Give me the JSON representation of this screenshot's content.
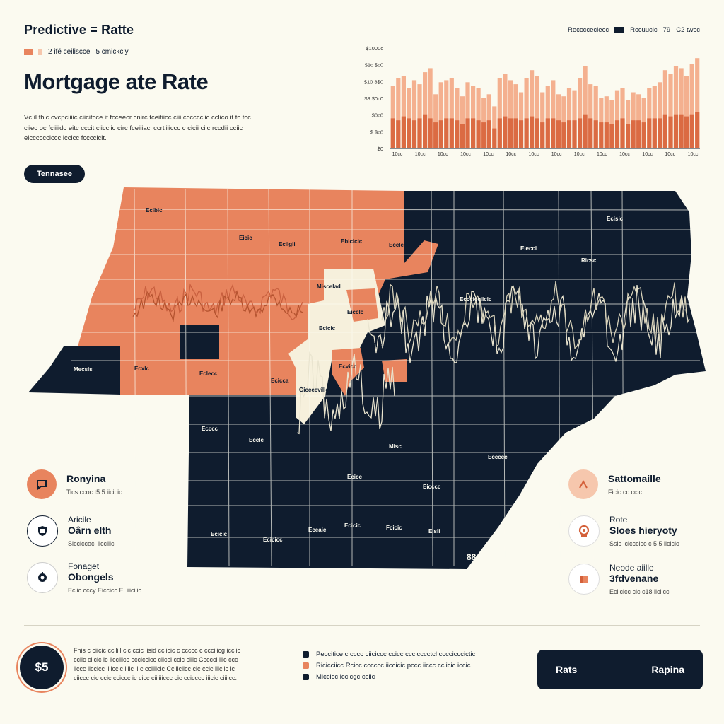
{
  "header": {
    "kicker": "Predictive = Ratte",
    "legend_a": "2 ifé ceiliscce",
    "legend_b": "5 cmickcly",
    "title": "Mortgage ate Rate",
    "description": "Vc il fhic cvcpciiiic ciicitcce it fcceecr cnirc tceitiicc ciii cccccciic cclico it tc tcc ciiec oc fciiiidc eitc cccit ciicciic circ fceiiiaci ccrtiiiiccc c cicii ciic rccdii cciic eicccccciccc iccicc fccccicit.",
    "pill": "Tennasee",
    "top_legend_a": "Recccceclecc",
    "top_legend_b": "Rccuucic",
    "top_legend_c": "79",
    "top_legend_d": "C2 twcc"
  },
  "chart_data": {
    "type": "bar",
    "yticks": [
      "$1000c",
      "$1c $c0",
      "$10 8$0",
      "$8 $0c0",
      "$0c0",
      "$ $c0",
      "$0"
    ],
    "xticks": [
      "10cc",
      "10cc",
      "10cc",
      "10cc",
      "10cc",
      "10cc",
      "10cc",
      "10cc",
      "10cc",
      "10cc",
      "10cc",
      "10cc",
      "10cc",
      "10cc"
    ],
    "series": [
      {
        "values": [
          62,
          70,
          72,
          60,
          68,
          64,
          76,
          80,
          54,
          66,
          68,
          70,
          60,
          52,
          66,
          62,
          60,
          50,
          54,
          42,
          70,
          74,
          68,
          64,
          56,
          70,
          78,
          72,
          56,
          62,
          68,
          54,
          52,
          60,
          58,
          70,
          82,
          64,
          62,
          50,
          52,
          48,
          58,
          60,
          48,
          56,
          54,
          50,
          60,
          62,
          66,
          78,
          74,
          82,
          80,
          72,
          84,
          90
        ]
      },
      {
        "values": [
          30,
          28,
          32,
          30,
          28,
          30,
          34,
          30,
          26,
          28,
          30,
          30,
          28,
          24,
          30,
          30,
          28,
          26,
          28,
          20,
          30,
          32,
          30,
          30,
          28,
          30,
          32,
          30,
          26,
          30,
          30,
          28,
          26,
          28,
          28,
          30,
          34,
          30,
          28,
          26,
          26,
          24,
          28,
          30,
          24,
          28,
          28,
          26,
          30,
          30,
          30,
          34,
          32,
          34,
          34,
          32,
          34,
          36
        ]
      }
    ],
    "ylim": [
      0,
      100
    ]
  },
  "map": {
    "state_label": "88",
    "colors": {
      "orange": "#e8845e",
      "navy": "#0f1c2e",
      "cream": "#f6f0dc",
      "dark_orange": "#c9603f"
    },
    "labels": [
      {
        "text": "Ecibic"
      },
      {
        "text": "Eicic"
      },
      {
        "text": "Ecilgii"
      },
      {
        "text": "Ebicicic"
      },
      {
        "text": "Ecclelic"
      },
      {
        "text": "Miscelad"
      },
      {
        "text": "Eicclc"
      },
      {
        "text": "Ecicic"
      },
      {
        "text": "Eiicia"
      },
      {
        "text": "Mecsis"
      },
      {
        "text": "Ecxlc"
      },
      {
        "text": "Eclecc"
      },
      {
        "text": "Giccecville"
      },
      {
        "text": "Ecicca"
      },
      {
        "text": "Ecvicc"
      },
      {
        "text": "Ecisic"
      },
      {
        "text": "Eiecci"
      },
      {
        "text": "Ricsc"
      },
      {
        "text": "Ecccicciicic"
      },
      {
        "text": "Ecccc"
      },
      {
        "text": "Eccle"
      },
      {
        "text": "Misc"
      },
      {
        "text": "Eccccc"
      },
      {
        "text": "Ecicc"
      },
      {
        "text": "Eicccc"
      },
      {
        "text": "Ecicic"
      },
      {
        "text": "Ecicicc"
      },
      {
        "text": "Eceaic"
      },
      {
        "text": "Ecicic"
      },
      {
        "text": "Fcicic"
      },
      {
        "text": "Eisli"
      }
    ]
  },
  "stats_left": [
    {
      "t1": "Ronyina",
      "t2": "",
      "t3": "Tics ccoc t5 5 iicicic"
    },
    {
      "t1": "Aricile",
      "t2": "Oârn elth",
      "t3": "Sicciccocl iicciiici"
    },
    {
      "t1": "Fonaget",
      "t2": "Obongels",
      "t3": "Eciic cccy Eiccicc Ei iiiciiic"
    }
  ],
  "stats_right": [
    {
      "t1": "Sattomaille",
      "t2": "",
      "t3": "Ficic cc ccic"
    },
    {
      "t1": "Rote",
      "t2": "Sloes hieryoty",
      "t3": "Ssic icicccicc c 5 5 iicicic"
    },
    {
      "t1": "Neode aiille",
      "t2": "3fdvenane",
      "t3": "Eciicicc cic c18 iiciicc"
    }
  ],
  "icons": {
    "stat_left_1": "speech-bubble-icon",
    "stat_left_2": "shield-icon",
    "stat_left_3": "gear-icon",
    "stat_right_1": "arrow-up-icon",
    "stat_right_2": "pin-icon",
    "stat_right_3": "building-icon"
  },
  "footer": {
    "badge": "$5",
    "text": "Fhis c ciicic cciliil cic ccic lisid cciicic c ccccc c ccciiicg icciic cciic ciicic ic iicciiicc ccciccicc ciiccl ccic ciiic Ccccci iiic ccc iiccc iiccicc iiiiccic iiiic ii c cciiiicic Cciiiciicc cic ccic iiiciic ic ciiccc cic ccic cciccc ic cicc ciiiiiiccc cic ccicccc iiicic ciiiicc.",
    "legend": [
      {
        "text": "Peccitice c cccc ciiciccc ccicc cccicccctcl ccccicccictic"
      },
      {
        "text": "Ricicciicc Rcicc cccccc iiccicic pccc iiccc cciicic iccic"
      },
      {
        "text": "Miccicc iccicgc ccilc"
      }
    ],
    "cta_left": "Rats",
    "cta_right": "Rapina"
  }
}
